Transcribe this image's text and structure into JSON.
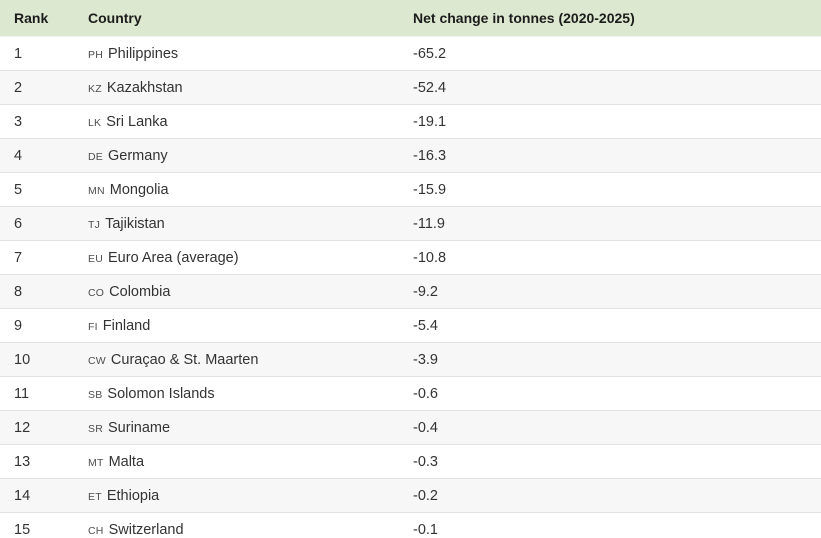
{
  "colors": {
    "header_bg": "#dde8d0",
    "row_alt_bg": "#f7f7f7",
    "row_bg": "#ffffff",
    "divider": "#e3e3e3",
    "bottom_rule": "#4d4d4d",
    "text": "#333333"
  },
  "table": {
    "columns": {
      "rank": "Rank",
      "country": "Country",
      "value": "Net change in tonnes (2020-2025)"
    },
    "rows": [
      {
        "rank": "1",
        "code": "PH",
        "country": "Philippines",
        "value": "-65.2"
      },
      {
        "rank": "2",
        "code": "KZ",
        "country": "Kazakhstan",
        "value": "-52.4"
      },
      {
        "rank": "3",
        "code": "LK",
        "country": "Sri Lanka",
        "value": "-19.1"
      },
      {
        "rank": "4",
        "code": "DE",
        "country": "Germany",
        "value": "-16.3"
      },
      {
        "rank": "5",
        "code": "MN",
        "country": "Mongolia",
        "value": "-15.9"
      },
      {
        "rank": "6",
        "code": "TJ",
        "country": "Tajikistan",
        "value": "-11.9"
      },
      {
        "rank": "7",
        "code": "EU",
        "country": "Euro Area (average)",
        "value": "-10.8"
      },
      {
        "rank": "8",
        "code": "CO",
        "country": "Colombia",
        "value": "-9.2"
      },
      {
        "rank": "9",
        "code": "FI",
        "country": "Finland",
        "value": "-5.4"
      },
      {
        "rank": "10",
        "code": "CW",
        "country": "Curaçao & St. Maarten",
        "value": "-3.9"
      },
      {
        "rank": "11",
        "code": "SB",
        "country": "Solomon Islands",
        "value": "-0.6"
      },
      {
        "rank": "12",
        "code": "SR",
        "country": "Suriname",
        "value": "-0.4"
      },
      {
        "rank": "13",
        "code": "MT",
        "country": "Malta",
        "value": "-0.3"
      },
      {
        "rank": "14",
        "code": "ET",
        "country": "Ethiopia",
        "value": "-0.2"
      },
      {
        "rank": "15",
        "code": "CH",
        "country": "Switzerland",
        "value": "-0.1"
      }
    ]
  }
}
